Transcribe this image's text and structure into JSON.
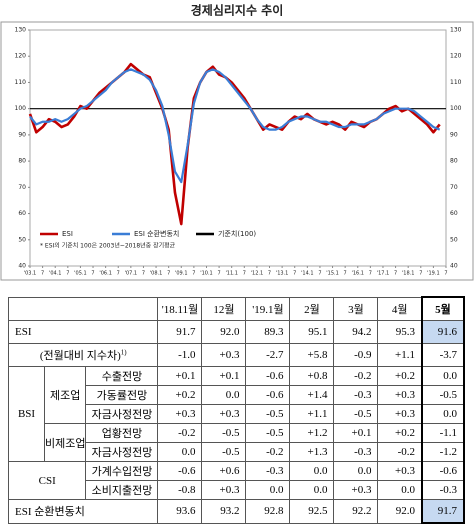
{
  "chart_data": {
    "type": "line",
    "title": "경제심리지수 추이",
    "x": [
      2003,
      2003.25,
      2003.5,
      2003.75,
      2004,
      2004.25,
      2004.5,
      2004.75,
      2005,
      2005.25,
      2005.5,
      2005.75,
      2006,
      2006.25,
      2006.5,
      2006.75,
      2007,
      2007.25,
      2007.5,
      2007.75,
      2008,
      2008.25,
      2008.5,
      2008.75,
      2009,
      2009.25,
      2009.5,
      2009.75,
      2010,
      2010.25,
      2010.5,
      2010.75,
      2011,
      2011.25,
      2011.5,
      2011.75,
      2012,
      2012.25,
      2012.5,
      2012.75,
      2013,
      2013.25,
      2013.5,
      2013.75,
      2014,
      2014.25,
      2014.5,
      2014.75,
      2015,
      2015.25,
      2015.5,
      2015.75,
      2016,
      2016.25,
      2016.5,
      2016.75,
      2017,
      2017.25,
      2017.5,
      2017.75,
      2018,
      2018.25,
      2018.5,
      2018.75,
      2019,
      2019.25
    ],
    "series": [
      {
        "name": "ESI",
        "color": "#c00000",
        "values": [
          98,
          91,
          93,
          96,
          95,
          93,
          94,
          97,
          101,
          100,
          103,
          106,
          108,
          110,
          112,
          114,
          117,
          115,
          113,
          112,
          106,
          100,
          92,
          68,
          56,
          85,
          104,
          110,
          114,
          116,
          113,
          112,
          110,
          107,
          104,
          100,
          96,
          92,
          94,
          93,
          92,
          95,
          97,
          96,
          98,
          96,
          95,
          94,
          95,
          94,
          92,
          95,
          94,
          93,
          95,
          96,
          98,
          100,
          101,
          99,
          100,
          98,
          96,
          94,
          91,
          94
        ]
      },
      {
        "name": "ESI 순환변동치",
        "color": "#3a7dd6",
        "values": [
          97,
          94,
          95,
          95,
          96,
          95,
          96,
          98,
          100,
          101,
          103,
          105,
          107,
          110,
          112,
          114,
          115,
          114,
          113,
          111,
          107,
          101,
          90,
          76,
          72,
          86,
          102,
          110,
          114,
          115,
          114,
          112,
          109,
          106,
          103,
          100,
          96,
          93,
          92,
          92,
          93,
          95,
          96,
          97,
          97,
          96,
          95,
          95,
          94,
          93,
          93,
          94,
          94,
          94,
          95,
          96,
          98,
          99,
          100,
          100,
          100,
          99,
          97,
          95,
          93,
          92
        ]
      }
    ],
    "reference": {
      "name": "기준치(100)",
      "value": 100,
      "color": "#000000"
    },
    "note": "* ESI의 기준치 100은 2003년~2018년중 장기평균",
    "xlim": [
      2003,
      2019.5
    ],
    "xticks": [
      {
        "value": 2003,
        "label": "'03.1"
      },
      {
        "value": 2003.5,
        "label": "7"
      },
      {
        "value": 2004,
        "label": "'04.1"
      },
      {
        "value": 2004.5,
        "label": "7"
      },
      {
        "value": 2005,
        "label": "'05.1"
      },
      {
        "value": 2005.5,
        "label": "7"
      },
      {
        "value": 2006,
        "label": "'06.1"
      },
      {
        "value": 2006.5,
        "label": "7"
      },
      {
        "value": 2007,
        "label": "'07.1"
      },
      {
        "value": 2007.5,
        "label": "7"
      },
      {
        "value": 2008,
        "label": "'08.1"
      },
      {
        "value": 2008.5,
        "label": "7"
      },
      {
        "value": 2009,
        "label": "'09.1"
      },
      {
        "value": 2009.5,
        "label": "7"
      },
      {
        "value": 2010,
        "label": "'10.1"
      },
      {
        "value": 2010.5,
        "label": "7"
      },
      {
        "value": 2011,
        "label": "'11.1"
      },
      {
        "value": 2011.5,
        "label": "7"
      },
      {
        "value": 2012,
        "label": "'12.1"
      },
      {
        "value": 2012.5,
        "label": "7"
      },
      {
        "value": 2013,
        "label": "'13.1"
      },
      {
        "value": 2013.5,
        "label": "7"
      },
      {
        "value": 2014,
        "label": "'14.1"
      },
      {
        "value": 2014.5,
        "label": "7"
      },
      {
        "value": 2015,
        "label": "'15.1"
      },
      {
        "value": 2015.5,
        "label": "7"
      },
      {
        "value": 2016,
        "label": "'16.1"
      },
      {
        "value": 2016.5,
        "label": "7"
      },
      {
        "value": 2017,
        "label": "'17.1"
      },
      {
        "value": 2017.5,
        "label": "7"
      },
      {
        "value": 2018,
        "label": "'18.1"
      },
      {
        "value": 2018.5,
        "label": "7"
      },
      {
        "value": 2019,
        "label": "'19.1"
      },
      {
        "value": 2019.5,
        "label": "7"
      }
    ],
    "ylim": [
      40,
      130
    ],
    "yticks": [
      40,
      50,
      60,
      70,
      80,
      90,
      100,
      110,
      120,
      130
    ],
    "grid": false
  },
  "table": {
    "columns": [
      "'18.11월",
      "12월",
      "'19.1월",
      "2월",
      "3월",
      "4월",
      "5월"
    ],
    "esi": {
      "label": "ESI",
      "values": [
        "91.7",
        "92.0",
        "89.3",
        "95.1",
        "94.2",
        "95.3",
        "91.6"
      ]
    },
    "change": {
      "label": "(전월대비 지수차)",
      "note": "1)",
      "values": [
        "-1.0",
        "+0.3",
        "-2.7",
        "+5.8",
        "-0.9",
        "+1.1",
        "-3.7"
      ]
    },
    "bsi": {
      "label": "BSI",
      "subgroups": [
        {
          "label": "제조업",
          "rows": [
            {
              "label": "수출전망",
              "values": [
                "+0.1",
                "+0.1",
                "-0.6",
                "+0.8",
                "-0.2",
                "+0.2",
                "0.0"
              ]
            },
            {
              "label": "가동률전망",
              "values": [
                "+0.2",
                "0.0",
                "-0.6",
                "+1.4",
                "-0.3",
                "+0.3",
                "-0.5"
              ]
            },
            {
              "label": "자금사정전망",
              "values": [
                "+0.3",
                "+0.3",
                "-0.5",
                "+1.1",
                "-0.5",
                "+0.3",
                "0.0"
              ]
            }
          ]
        },
        {
          "label": "비제조업",
          "rows": [
            {
              "label": "업황전망",
              "values": [
                "-0.2",
                "-0.5",
                "-0.5",
                "+1.2",
                "+0.1",
                "+0.2",
                "-1.1"
              ]
            },
            {
              "label": "자금사정전망",
              "values": [
                "0.0",
                "-0.5",
                "-0.2",
                "+1.3",
                "-0.3",
                "-0.2",
                "-1.2"
              ]
            }
          ]
        }
      ]
    },
    "csi": {
      "label": "CSI",
      "rows": [
        {
          "label": "가계수입전망",
          "values": [
            "-0.6",
            "+0.6",
            "-0.3",
            "0.0",
            "0.0",
            "+0.3",
            "-0.6"
          ]
        },
        {
          "label": "소비지출전망",
          "values": [
            "-0.8",
            "+0.3",
            "0.0",
            "0.0",
            "+0.3",
            "0.0",
            "-0.3"
          ]
        }
      ]
    },
    "cycle": {
      "label": "ESI 순환변동치",
      "values": [
        "93.6",
        "93.2",
        "92.8",
        "92.5",
        "92.2",
        "92.0",
        "91.7"
      ]
    }
  }
}
